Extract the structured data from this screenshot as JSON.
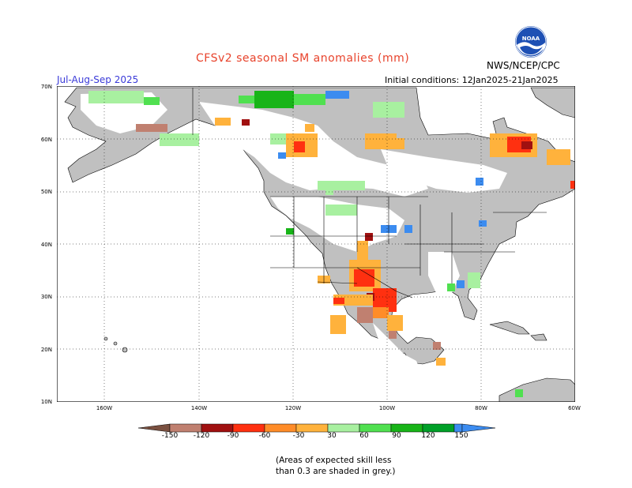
{
  "header": {
    "title": "CFSv2 seasonal SM anomalies (mm)",
    "season": "Jul-Aug-Sep 2025",
    "initial_conditions": "Initial conditions: 12Jan2025-21Jan2025",
    "agency": "NWS/NCEP/CPC",
    "logo_text": "NOAA"
  },
  "map": {
    "region": "North America",
    "lat_labels": [
      "70N",
      "60N",
      "50N",
      "40N",
      "30N",
      "20N",
      "10N"
    ],
    "lon_labels": [
      "160W",
      "140W",
      "120W",
      "100W",
      "80W",
      "60W"
    ],
    "colors": {
      "low_skill": "#c0c0c0",
      "ocean": "#ffffff",
      "dry_150": "#7a5040",
      "dry_120": "#c08070",
      "dry_90": "#a01010",
      "dry_60": "#ff3010",
      "dry_30": "#ffb23c",
      "wet_30": "#a8f0a0",
      "wet_60": "#50e050",
      "wet_90": "#18b418",
      "wet_120": "#00a028",
      "wet_150": "#3c8cf0"
    }
  },
  "legend": {
    "ticks": [
      "-150",
      "-120",
      "-90",
      "-60",
      "-30",
      "30",
      "60",
      "90",
      "120",
      "150"
    ],
    "colors": [
      "#7a5040",
      "#c08070",
      "#a01010",
      "#ff3010",
      "#ff8c28",
      "#ffb23c",
      "#ffffff",
      "#a8f0a0",
      "#50e050",
      "#18b418",
      "#00a028",
      "#3c8cf0",
      "#3050c8"
    ]
  },
  "note": {
    "line1": "(Areas of expected skill less",
    "line2": "than 0.3 are shaded in grey.)"
  }
}
